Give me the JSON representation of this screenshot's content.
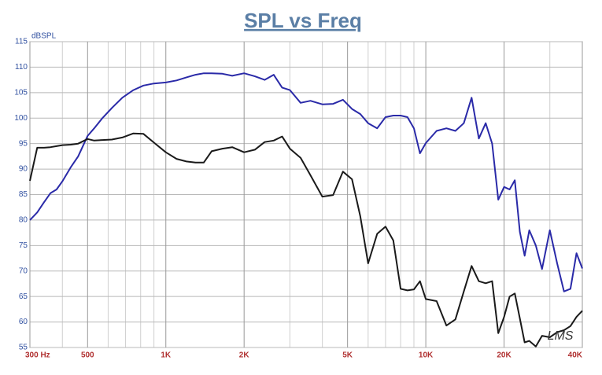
{
  "chart_data": {
    "type": "line",
    "title": "SPL vs Freq",
    "ylabel": "dBSPL",
    "watermark": "LMS",
    "xscale": "log",
    "grid": true,
    "xlim": [
      300,
      40000
    ],
    "ylim": [
      55,
      115
    ],
    "xticks": [
      {
        "value": 300,
        "label": "300 Hz"
      },
      500,
      {
        "value": 1000,
        "label": "1K"
      },
      {
        "value": 2000,
        "label": "2K"
      },
      {
        "value": 5000,
        "label": "5K"
      },
      {
        "value": 10000,
        "label": "10K"
      },
      {
        "value": 20000,
        "label": "20K"
      },
      {
        "value": 40000,
        "label": "40K"
      }
    ],
    "x_minor_grid": [
      400,
      600,
      700,
      800,
      900,
      3000,
      4000,
      6000,
      7000,
      8000,
      9000,
      30000
    ],
    "yticks": [
      55,
      60,
      65,
      70,
      75,
      80,
      85,
      90,
      95,
      100,
      105,
      110,
      115
    ],
    "x": [
      300,
      320,
      340,
      360,
      380,
      400,
      430,
      460,
      500,
      530,
      570,
      620,
      680,
      750,
      820,
      900,
      1000,
      1100,
      1200,
      1300,
      1400,
      1500,
      1650,
      1800,
      2000,
      2200,
      2400,
      2600,
      2800,
      3000,
      3300,
      3600,
      4000,
      4400,
      4800,
      5200,
      5600,
      6000,
      6500,
      7000,
      7500,
      8000,
      8500,
      9000,
      9500,
      10000,
      11000,
      12000,
      13000,
      14000,
      15000,
      16000,
      17000,
      18000,
      19000,
      20000,
      21000,
      22000,
      23000,
      24000,
      25000,
      26500,
      28000,
      30000,
      32000,
      34000,
      36000,
      38000,
      40000
    ],
    "series": [
      {
        "color": "#2a2aa8",
        "values": [
          80,
          81.5,
          83.5,
          85.3,
          86,
          87.6,
          90.3,
          92.5,
          96.5,
          98,
          100,
          102,
          104,
          105.5,
          106.4,
          106.8,
          107,
          107.4,
          108,
          108.5,
          108.8,
          108.8,
          108.7,
          108.3,
          108.8,
          108.2,
          107.5,
          108.5,
          106,
          105.5,
          103,
          103.4,
          102.7,
          102.8,
          103.6,
          101.8,
          100.8,
          99,
          98,
          100.2,
          100.5,
          100.5,
          100.2,
          98,
          93.1,
          95.1,
          97.5,
          98,
          97.5,
          99,
          104,
          96,
          99,
          95,
          84,
          86.5,
          86,
          87.8,
          77.7,
          73,
          78,
          75,
          70.4,
          78,
          71.5,
          66,
          66.5,
          73.5,
          70.5
        ]
      },
      {
        "color": "#1a1a1a",
        "values": [
          87.7,
          94.2,
          94.2,
          94.3,
          94.5,
          94.7,
          94.8,
          95,
          95.9,
          95.6,
          95.7,
          95.8,
          96.2,
          97,
          96.9,
          95.2,
          93.3,
          92,
          91.5,
          91.3,
          91.3,
          93.5,
          94,
          94.3,
          93.3,
          93.8,
          95.3,
          95.6,
          96.4,
          94,
          92.2,
          88.8,
          84.6,
          84.9,
          89.5,
          88,
          80.7,
          71.5,
          77.3,
          78.7,
          76,
          66.5,
          66.2,
          66.4,
          68,
          64.5,
          64.1,
          59.3,
          60.5,
          66,
          71,
          68,
          67.6,
          68,
          57.8,
          61,
          65,
          65.6,
          60.7,
          56,
          56.3,
          55.2,
          57.3,
          57,
          58,
          58.4,
          59.2,
          61,
          62.2
        ]
      }
    ]
  }
}
